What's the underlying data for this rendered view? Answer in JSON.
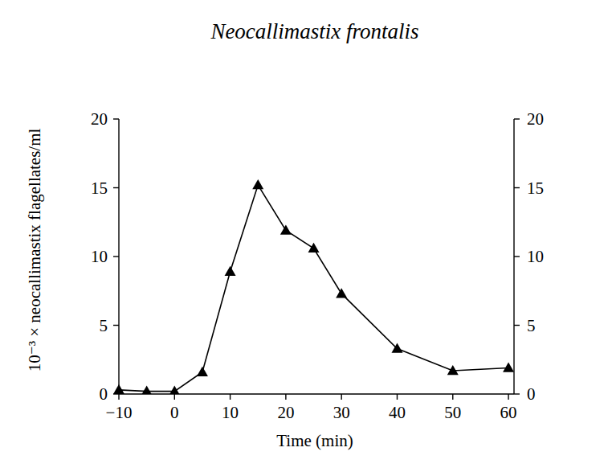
{
  "chart_data": {
    "type": "line",
    "title": "Neocallimastix frontalis",
    "x_label": "Time (min)",
    "y_label": "10⁻³ × neocallimastix flagellates/ml",
    "x": [
      -10,
      -5,
      0,
      5,
      10,
      15,
      20,
      25,
      30,
      40,
      50,
      60
    ],
    "values": [
      0.3,
      0.2,
      0.2,
      1.6,
      8.9,
      15.2,
      11.9,
      10.6,
      7.3,
      3.3,
      1.7,
      1.9
    ],
    "color": "#000000",
    "marker": "triangle",
    "line_style": "solid",
    "xlim": [
      -10,
      61
    ],
    "xticks": [
      -10,
      0,
      10,
      20,
      30,
      40,
      50,
      60
    ],
    "ylim": [
      0,
      20
    ],
    "yticks": [
      0,
      5,
      10,
      15,
      20
    ],
    "y2lim": [
      0,
      20
    ],
    "y2ticks": [
      0,
      5,
      10,
      15,
      20
    ],
    "grid": false
  }
}
